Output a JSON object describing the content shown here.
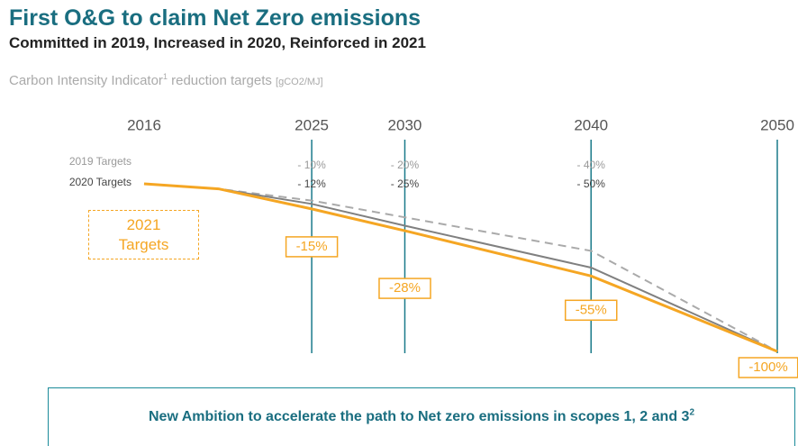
{
  "title": "First O&G to claim Net Zero emissions",
  "subtitle": "Committed in 2019, Increased in 2020, Reinforced in 2021",
  "footer": {
    "text": "New Ambition to accelerate the path to Net zero emissions in scopes 1, 2 and 3",
    "superscript": "2"
  },
  "chart_data": {
    "type": "line",
    "ylabel": {
      "text": "Carbon Intensity Indicator",
      "superscript": "1",
      "rest": "reduction targets",
      "unit": "[gCO2/MJ]"
    },
    "x": [
      2016,
      2020,
      2025,
      2030,
      2040,
      2050
    ],
    "xlim": [
      2016,
      2050
    ],
    "xticks": [
      2016,
      2025,
      2030,
      2040,
      2050
    ],
    "ylim": [
      -100,
      0
    ],
    "series": [
      {
        "name": "2019 Targets",
        "color": "#aaaaaa",
        "dashed": true,
        "values": [
          0,
          -3,
          -10,
          -20,
          -40,
          -100
        ],
        "value_labels": [
          null,
          null,
          "- 10%",
          "- 20%",
          "- 40%",
          null
        ]
      },
      {
        "name": "2020 Targets",
        "color": "#808080",
        "dashed": false,
        "values": [
          0,
          -3,
          -12,
          -25,
          -50,
          -100
        ],
        "value_labels": [
          null,
          null,
          "- 12%",
          "- 25%",
          "- 50%",
          null
        ]
      },
      {
        "name": "2021 Targets",
        "color": "#f5a623",
        "dashed": false,
        "values": [
          0,
          -3,
          -15,
          -28,
          -55,
          -100
        ],
        "value_labels": [
          null,
          null,
          "-15%",
          "-28%",
          "-55%",
          "-100%"
        ]
      }
    ]
  }
}
